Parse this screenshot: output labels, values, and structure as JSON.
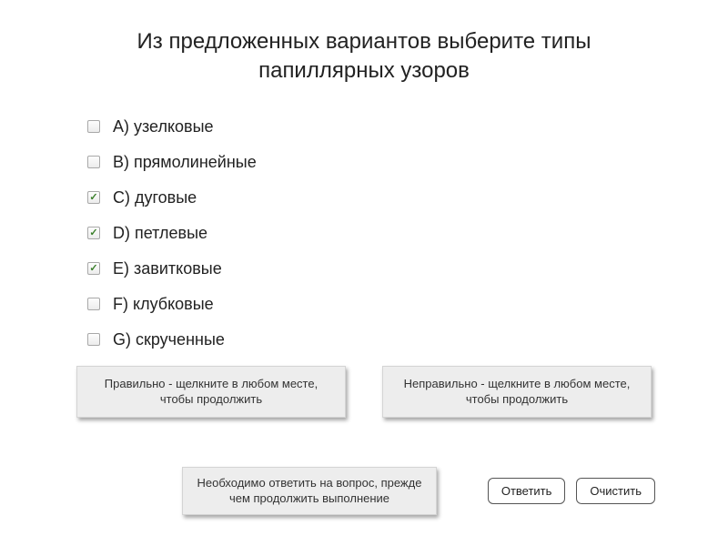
{
  "question": {
    "title": "Из предложенных вариантов выберите типы папиллярных узоров",
    "options": [
      {
        "label": "A)  узелковые",
        "checked": false
      },
      {
        "label": "B)  прямолинейные",
        "checked": false
      },
      {
        "label": "C)  дуговые",
        "checked": true
      },
      {
        "label": "D)  петлевые",
        "checked": true
      },
      {
        "label": "E)  завитковые",
        "checked": true
      },
      {
        "label": "F)  клубковые",
        "checked": false
      },
      {
        "label": "G)  скрученные",
        "checked": false
      }
    ]
  },
  "feedback": {
    "correct": "Правильно - щелкните в любом месте, чтобы продолжить",
    "incorrect": "Неправильно - щелкните в любом месте, чтобы продолжить"
  },
  "prompt": "Необходимо ответить на вопрос, прежде чем продолжить выполнение",
  "buttons": {
    "submit": "Ответить",
    "clear": "Очистить"
  },
  "style": {
    "background": "#ffffff",
    "title_fontsize": 24,
    "option_fontsize": 18,
    "feedback_bg": "#ededed",
    "feedback_border": "#d4d4d4",
    "button_border": "#555555",
    "text_color": "#222222",
    "check_color": "#3a7f2a"
  }
}
